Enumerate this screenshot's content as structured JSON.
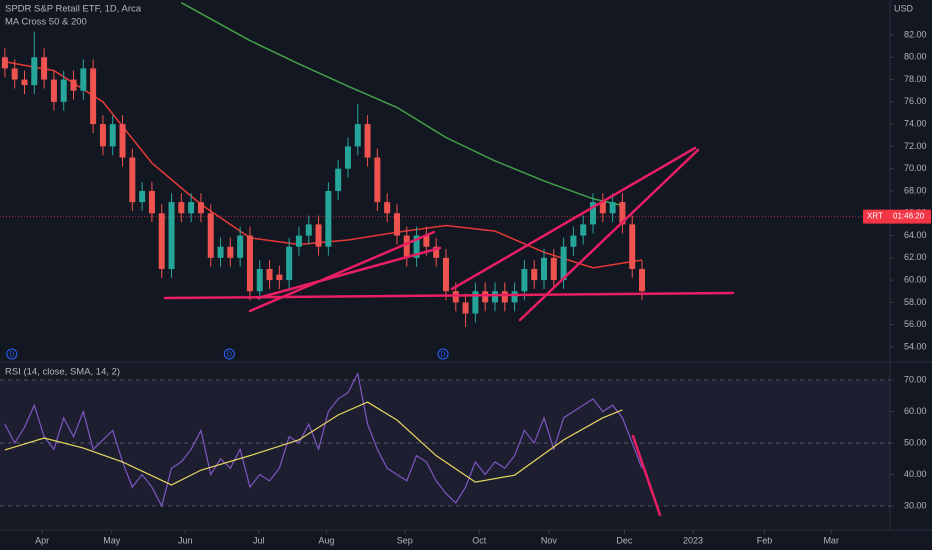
{
  "chart_data": [
    {
      "type": "candlestick",
      "title": "SPDR S&P Retail ETF, 1D, Arca",
      "subtitle": "MA Cross 50 & 200",
      "currency": "USD",
      "symbol": "XRT",
      "countdown": "01:46:20",
      "last_price": 65.7,
      "up_color": "#26a69a",
      "down_color": "#ef5350",
      "categories": [
        null,
        null,
        null,
        null,
        null,
        null,
        null,
        null,
        null,
        null,
        null,
        null,
        null,
        null,
        null,
        null,
        null,
        null,
        null,
        null,
        null,
        null,
        null,
        null,
        null,
        null,
        null,
        null,
        null,
        null,
        null,
        null,
        null,
        null,
        null,
        null,
        null,
        null,
        null,
        null,
        null,
        null,
        null,
        null,
        null,
        null,
        null,
        null,
        null,
        null,
        null,
        null,
        null,
        null,
        null,
        null,
        null,
        null,
        null,
        null,
        null,
        null,
        null,
        null,
        null,
        null
      ],
      "open": [
        80,
        79,
        78,
        77.5,
        80,
        78,
        76,
        78,
        77,
        79,
        74,
        72,
        74,
        71,
        67,
        68,
        66,
        61,
        67,
        66,
        67,
        66,
        62,
        63,
        62,
        64,
        59,
        61,
        60.5,
        60,
        63,
        64,
        65,
        63,
        68,
        70,
        72,
        74,
        71,
        67,
        66,
        64,
        62,
        64,
        63,
        62,
        59,
        58,
        57,
        59,
        58,
        59,
        58,
        59,
        61,
        60,
        62,
        60,
        63,
        64,
        65,
        67,
        66,
        67,
        65,
        61
      ],
      "high": [
        80.8,
        79.8,
        78.8,
        82.3,
        80.8,
        78.8,
        78.8,
        78.8,
        79.8,
        79.8,
        74.8,
        74.8,
        74.8,
        71.8,
        68.8,
        68.8,
        66.8,
        67.8,
        67.8,
        67.8,
        67.8,
        66.8,
        63.8,
        63.8,
        64.8,
        64.8,
        61.8,
        61.8,
        61.3,
        63.8,
        64.8,
        65.8,
        65.8,
        68.8,
        70.8,
        72.8,
        75.8,
        74.8,
        71.8,
        67.8,
        66.8,
        64.8,
        64.8,
        64.8,
        63.8,
        62.8,
        59.8,
        58.8,
        59.8,
        59.8,
        59.8,
        59.8,
        59.8,
        61.8,
        61.8,
        62.8,
        62.8,
        63.8,
        64.8,
        65.8,
        67.8,
        67.8,
        67.8,
        67.8,
        65.8,
        61.8
      ],
      "low": [
        78.2,
        77.2,
        76.7,
        76.7,
        77.2,
        75.2,
        75.2,
        76.2,
        76.2,
        73.2,
        71.2,
        71.2,
        70.2,
        66.2,
        66.2,
        65.2,
        60.2,
        60.2,
        65.2,
        65.2,
        65.2,
        61.2,
        61.2,
        61.2,
        61.2,
        58.2,
        58.2,
        59.2,
        59.2,
        59.2,
        62.2,
        63.2,
        62.2,
        62.2,
        67.2,
        69.2,
        71.2,
        70.2,
        66.2,
        65.2,
        63.2,
        61.2,
        61.2,
        62.2,
        61.2,
        58.2,
        57.2,
        55.8,
        56.2,
        57.2,
        57.2,
        57.2,
        57.2,
        58.2,
        59.2,
        59.2,
        59.2,
        59.2,
        62.2,
        63.2,
        64.2,
        65.2,
        65.2,
        64.2,
        60.2,
        58.2
      ],
      "close": [
        79,
        78,
        77.5,
        80,
        78,
        76,
        78,
        77,
        79,
        74,
        72,
        74,
        71,
        67,
        68,
        66,
        61,
        67,
        66,
        67,
        66,
        62,
        63,
        62,
        64,
        59,
        61,
        60,
        60,
        63,
        64,
        65,
        63,
        68,
        70,
        72,
        74,
        71,
        67,
        66,
        64,
        62,
        64,
        63,
        62,
        59,
        58,
        57,
        59,
        58,
        59,
        58,
        59,
        61,
        60,
        62,
        60,
        63,
        64,
        65,
        67,
        66,
        67,
        65,
        61,
        59
      ],
      "lines": [
        {
          "color": "#e53935",
          "x": [
            0,
            5,
            10,
            15,
            20,
            25,
            30,
            35,
            40,
            45,
            50,
            55,
            60,
            65
          ],
          "values": [
            79.6,
            78.8,
            76,
            70.5,
            66.8,
            63.8,
            63.2,
            63.6,
            64.3,
            64.9,
            64.4,
            62.5,
            61.1,
            61.8
          ]
        },
        {
          "color": "#43a047",
          "x": [
            18,
            25,
            30,
            35,
            40,
            45,
            50,
            55,
            60,
            63
          ],
          "values": [
            84.9,
            81.5,
            79.4,
            77.4,
            75.5,
            72.8,
            70.7,
            68.9,
            67.3,
            66.7
          ]
        }
      ],
      "events": [
        "D",
        "D",
        "D"
      ],
      "event_x": [
        0.7,
        22.9,
        44.7
      ],
      "xlim": [
        -0.5,
        90.3
      ],
      "xticks": [
        {
          "value": 3.8,
          "label": "Apr"
        },
        {
          "value": 10.9,
          "label": "May"
        },
        {
          "value": 18.4,
          "label": "Jun"
        },
        {
          "value": 25.9,
          "label": "Jul"
        },
        {
          "value": 32.8,
          "label": "Aug"
        },
        {
          "value": 40.8,
          "label": "Sep"
        },
        {
          "value": 48.4,
          "label": "Oct"
        },
        {
          "value": 55.5,
          "label": "Nov"
        },
        {
          "value": 63.2,
          "label": "Dec"
        },
        {
          "value": 70.2,
          "label": "2023"
        },
        {
          "value": 77.5,
          "label": "Feb"
        },
        {
          "value": 84.3,
          "label": "Mar"
        }
      ],
      "ylim": [
        52.83,
        85.14
      ],
      "yticks": [
        {
          "value": 54,
          "label": "54.00"
        },
        {
          "value": 56,
          "label": "56.00"
        },
        {
          "value": 58,
          "label": "58.00"
        },
        {
          "value": 60,
          "label": "60.00"
        },
        {
          "value": 62,
          "label": "62.00"
        },
        {
          "value": 64,
          "label": "64.00"
        },
        {
          "value": 66,
          "label": "66.00"
        },
        {
          "value": 68,
          "label": "68.00"
        },
        {
          "value": 70,
          "label": "70.00"
        },
        {
          "value": 72,
          "label": "72.00"
        },
        {
          "value": 74,
          "label": "74.00"
        },
        {
          "value": 76,
          "label": "76.00"
        },
        {
          "value": 78,
          "label": "78.00"
        },
        {
          "value": 80,
          "label": "80.00"
        },
        {
          "value": 82,
          "label": "82.00"
        }
      ]
    },
    {
      "type": "line",
      "title": "RSI (14, close, SMA, 14, 2)",
      "series": [
        {
          "color": "#7e57c2",
          "values": [
            56,
            50,
            55,
            62,
            52,
            48,
            58,
            52,
            60,
            48,
            51,
            54,
            44,
            36,
            40,
            36,
            30,
            42,
            44,
            48,
            54,
            40,
            45,
            42,
            48,
            36,
            40,
            38,
            42,
            52,
            50,
            56,
            48,
            60,
            64,
            66,
            72,
            56,
            48,
            42,
            40,
            38,
            46,
            44,
            38,
            34,
            31,
            36,
            44,
            40,
            44,
            42,
            46,
            54,
            50,
            58,
            48,
            58,
            60,
            62,
            64,
            60,
            62,
            58,
            50,
            42
          ]
        },
        {
          "color": "#e6d760",
          "x": [
            0,
            4,
            8,
            12,
            17,
            20,
            25,
            30,
            34,
            37,
            40,
            44,
            48,
            52,
            57,
            61,
            63
          ],
          "values": [
            47.8,
            51.6,
            48.4,
            44,
            36.7,
            41.4,
            46,
            51,
            58.9,
            63,
            57.3,
            46,
            37.6,
            39.8,
            51,
            58,
            60.5
          ]
        }
      ],
      "band_color": "#7e57c2",
      "levels": [
        30,
        50,
        70
      ],
      "ylim": [
        22.4,
        75.4
      ],
      "yticks": [
        {
          "value": 30,
          "label": "30.00"
        },
        {
          "value": 40,
          "label": "40.00"
        },
        {
          "value": 50,
          "label": "50.00"
        },
        {
          "value": 60,
          "label": "60.00"
        },
        {
          "value": 70,
          "label": "70.00"
        }
      ]
    }
  ]
}
